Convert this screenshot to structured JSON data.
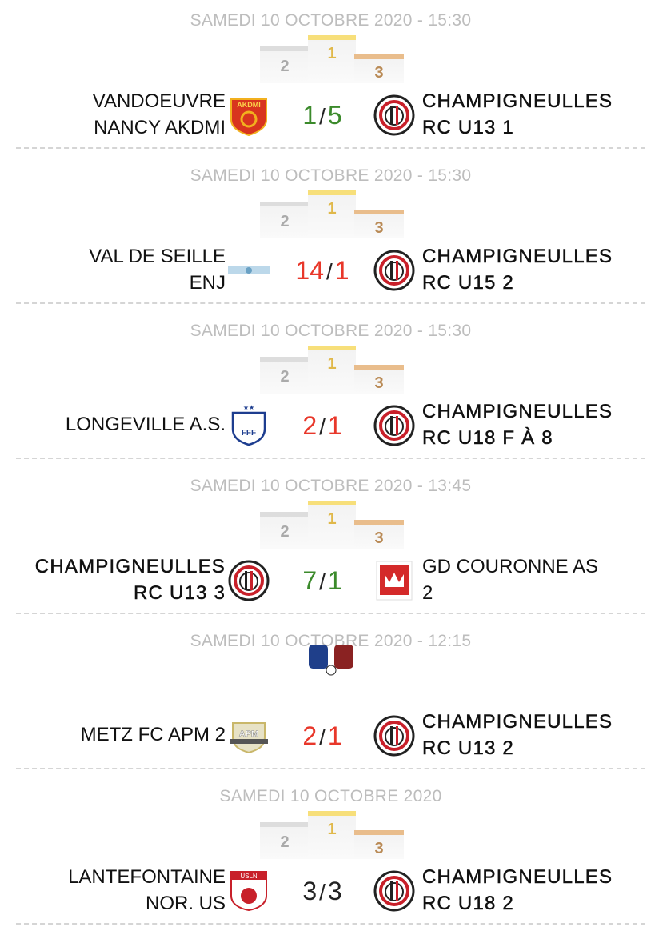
{
  "colors": {
    "win": "#3b8a2b",
    "loss": "#e8372a",
    "draw": "#222222",
    "date": "#bdbdbd"
  },
  "matches": [
    {
      "date": "SAMEDI 10 OCTOBRE 2020 - 15:30",
      "icon": "podium",
      "home": [
        "VANDOEUVRE",
        "NANCY AKDMI"
      ],
      "home_logo": "akdmi",
      "home_score": "1",
      "sep": "/",
      "away_score": "5",
      "away": [
        "CHAMPIGNEULLES",
        "RC U13 1"
      ],
      "away_logo": "champigneulles",
      "own": "away",
      "result": "win"
    },
    {
      "date": "SAMEDI 10 OCTOBRE 2020 - 15:30",
      "icon": "podium",
      "home": [
        "VAL DE SEILLE",
        "ENJ"
      ],
      "home_logo": "val-de-seille",
      "home_score": "14",
      "sep": "/",
      "away_score": "1",
      "away": [
        "CHAMPIGNEULLES",
        "RC U15 2"
      ],
      "away_logo": "champigneulles",
      "own": "away",
      "result": "loss"
    },
    {
      "date": "SAMEDI 10 OCTOBRE 2020 - 15:30",
      "icon": "podium",
      "home": [
        "LONGEVILLE A.S.",
        ""
      ],
      "home_logo": "fff",
      "home_score": "2",
      "sep": "/",
      "away_score": "1",
      "away": [
        "CHAMPIGNEULLES",
        "RC U18 F À 8"
      ],
      "away_logo": "champigneulles",
      "own": "away",
      "result": "loss"
    },
    {
      "date": "SAMEDI 10 OCTOBRE 2020 - 13:45",
      "icon": "podium",
      "home": [
        "CHAMPIGNEULLES",
        "RC U13 3"
      ],
      "home_logo": "champigneulles",
      "home_score": "7",
      "sep": "/",
      "away_score": "1",
      "away": [
        "GD COURONNE AS",
        "2"
      ],
      "away_logo": "couronne",
      "own": "home",
      "result": "win"
    },
    {
      "date": "SAMEDI 10 OCTOBRE 2020 - 12:15",
      "icon": "fists",
      "home": [
        "METZ FC APM 2",
        ""
      ],
      "home_logo": "apm",
      "home_score": "2",
      "sep": "/",
      "away_score": "1",
      "away": [
        "CHAMPIGNEULLES",
        "RC U13 2"
      ],
      "away_logo": "champigneulles",
      "own": "away",
      "result": "loss"
    },
    {
      "date": "SAMEDI 10 OCTOBRE 2020",
      "icon": "podium",
      "home": [
        "LANTEFONTAINE",
        "NOR. US"
      ],
      "home_logo": "usln",
      "home_score": "3",
      "sep": "/",
      "away_score": "3",
      "away": [
        "CHAMPIGNEULLES",
        "RC U18 2"
      ],
      "away_logo": "champigneulles",
      "own": "away",
      "result": "draw"
    }
  ],
  "podium": {
    "first": "1",
    "second": "2",
    "third": "3"
  }
}
